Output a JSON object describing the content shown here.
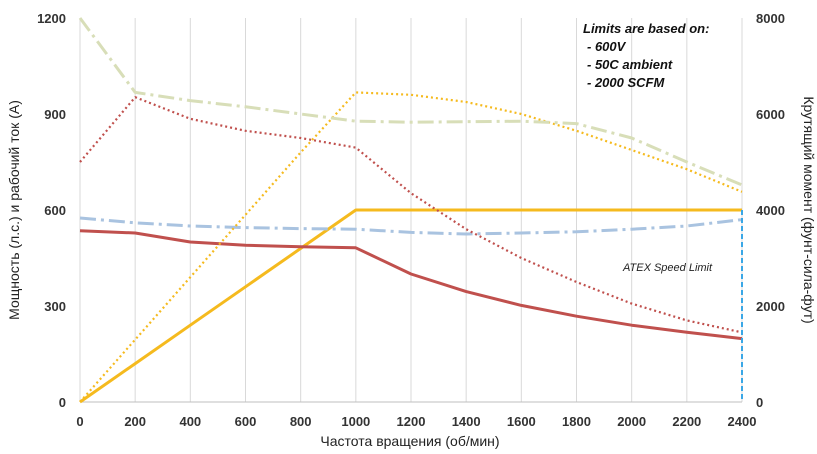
{
  "chart_data": {
    "type": "line",
    "title": "",
    "xlabel": "Частота вращения (об/мин)",
    "ylabel_left": "Мощность (л.с.) и рабочий ток (А)",
    "ylabel_right": "Крутящий момент (фунт-сила-фут)",
    "xlim": [
      0,
      2400
    ],
    "ylim_left": [
      0,
      1200
    ],
    "ylim_right": [
      0,
      8000
    ],
    "x_ticks": [
      0,
      200,
      400,
      600,
      800,
      1000,
      1200,
      1400,
      1600,
      1800,
      2000,
      2200,
      2400
    ],
    "y_left_ticks": [
      0,
      300,
      600,
      900,
      1200
    ],
    "y_right_ticks": [
      0,
      2000,
      4000,
      6000,
      8000
    ],
    "grid": "vertical",
    "notes": {
      "heading": "Limits are based on:",
      "items": [
        "- 600V",
        "- 50C ambient",
        "- 2000 SCFM"
      ]
    },
    "annotations": [
      {
        "text": "ATEX Speed Limit",
        "x": 2400
      }
    ],
    "series": [
      {
        "axis": "left",
        "color": "#F5BA1E",
        "style": "solid",
        "x": [
          0,
          200,
          400,
          600,
          800,
          1000,
          1200,
          1400,
          1600,
          1800,
          2000,
          2200,
          2400
        ],
        "values": [
          0,
          120,
          240,
          360,
          480,
          600,
          600,
          600,
          600,
          600,
          600,
          600,
          600
        ]
      },
      {
        "axis": "left",
        "color": "#C0504D",
        "style": "solid",
        "x": [
          0,
          200,
          400,
          600,
          800,
          1000,
          1200,
          1400,
          1600,
          1800,
          2000,
          2200,
          2400
        ],
        "values": [
          535,
          528,
          500,
          490,
          485,
          482,
          400,
          345,
          302,
          268,
          240,
          218,
          198
        ]
      },
      {
        "axis": "left",
        "color": "#A9C3E0",
        "style": "dashdot",
        "x": [
          0,
          200,
          400,
          600,
          800,
          1000,
          1200,
          1400,
          1600,
          1800,
          2000,
          2200,
          2400
        ],
        "values": [
          575,
          560,
          550,
          545,
          542,
          540,
          530,
          525,
          528,
          532,
          540,
          550,
          570
        ]
      },
      {
        "axis": "right",
        "color": "#F5BA1E",
        "style": "dotted",
        "x": [
          0,
          200,
          400,
          600,
          800,
          1000,
          1200,
          1400,
          1600,
          1800,
          2000,
          2200,
          2400
        ],
        "values": [
          0,
          1300,
          2600,
          3900,
          5200,
          6450,
          6400,
          6250,
          6000,
          5650,
          5250,
          4850,
          4380
        ]
      },
      {
        "axis": "right",
        "color": "#C0504D",
        "style": "dotted",
        "x": [
          0,
          200,
          400,
          600,
          800,
          1000,
          1200,
          1400,
          1600,
          1800,
          2000,
          2200,
          2400
        ],
        "values": [
          5000,
          6350,
          5900,
          5650,
          5500,
          5300,
          4350,
          3600,
          3000,
          2500,
          2050,
          1700,
          1450
        ]
      },
      {
        "axis": "right",
        "color": "#D8DEB8",
        "style": "dashdot",
        "x": [
          0,
          200,
          400,
          600,
          800,
          1000,
          1200,
          1400,
          1600,
          1800,
          2000,
          2200,
          2400
        ],
        "values": [
          8000,
          6450,
          6280,
          6150,
          6000,
          5850,
          5830,
          5840,
          5850,
          5800,
          5500,
          5000,
          4520
        ]
      }
    ]
  }
}
